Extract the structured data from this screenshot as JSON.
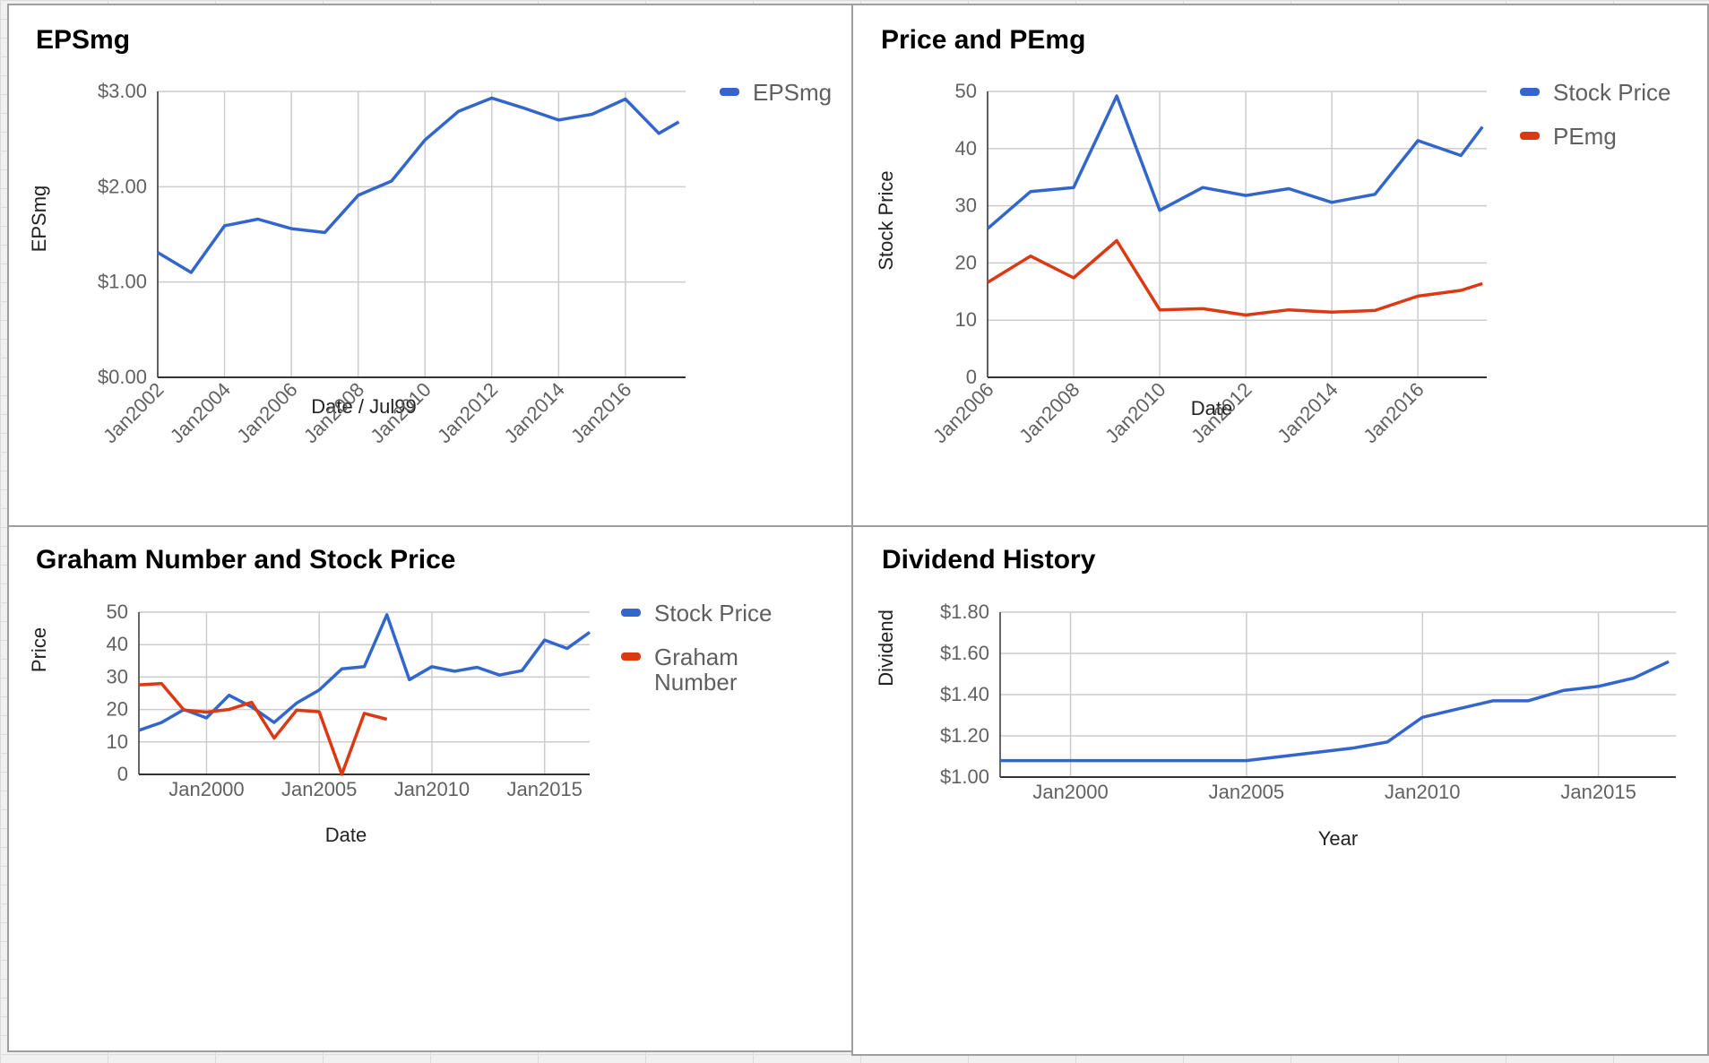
{
  "colors": {
    "blue": "#3366cc",
    "red": "#dc3912",
    "grid": "#cccccc",
    "axis": "#333333"
  },
  "chart_data": [
    {
      "type": "line",
      "title": "EPSmg",
      "xlabel": "Date / Jul99",
      "ylabel": "EPSmg",
      "ylim": [
        0,
        3
      ],
      "y_ticks": [
        0,
        1,
        2,
        3
      ],
      "y_tick_labels": [
        "$0.00",
        "$1.00",
        "$2.00",
        "$3.00"
      ],
      "xlim": [
        2002.0,
        2017.8
      ],
      "x_ticks": [
        2002,
        2004,
        2006,
        2008,
        2010,
        2012,
        2014,
        2016
      ],
      "x_tick_labels": [
        "Jan2002",
        "Jan2004",
        "Jan2006",
        "Jan2008",
        "Jan2010",
        "Jan2012",
        "Jan2014",
        "Jan2016"
      ],
      "x_label_rotation": -45,
      "legend": "right",
      "x": [
        2002,
        2003,
        2004,
        2005,
        2006,
        2007,
        2008,
        2009,
        2010,
        2011,
        2012,
        2013,
        2014,
        2015,
        2016,
        2017,
        2017.6
      ],
      "series": [
        {
          "name": "EPSmg",
          "color": "#3366cc",
          "values": [
            1.31,
            1.1,
            1.59,
            1.66,
            1.56,
            1.52,
            1.91,
            2.06,
            2.49,
            2.79,
            2.93,
            2.82,
            2.7,
            2.76,
            2.92,
            2.56,
            2.68
          ]
        }
      ]
    },
    {
      "type": "line",
      "title": "Price and PEmg",
      "xlabel": "Date",
      "ylabel": "Stock Price",
      "ylim": [
        0,
        50
      ],
      "y_ticks": [
        0,
        10,
        20,
        30,
        40,
        50
      ],
      "y_tick_labels": [
        "0",
        "10",
        "20",
        "30",
        "40",
        "50"
      ],
      "xlim": [
        2006.0,
        2017.6
      ],
      "x_ticks": [
        2006,
        2008,
        2010,
        2012,
        2014,
        2016
      ],
      "x_tick_labels": [
        "Jan2006",
        "Jan2008",
        "Jan2010",
        "Jan2012",
        "Jan2014",
        "Jan2016"
      ],
      "x_label_rotation": -45,
      "legend": "right",
      "x": [
        2006,
        2007,
        2008,
        2009,
        2010,
        2011,
        2012,
        2013,
        2014,
        2015,
        2016,
        2017,
        2017.5
      ],
      "series": [
        {
          "name": "Stock Price",
          "color": "#3366cc",
          "values": [
            26,
            32.5,
            33.2,
            49.2,
            29.2,
            33.2,
            31.8,
            33,
            30.6,
            32,
            41.4,
            38.8,
            43.8
          ]
        },
        {
          "name": "PEmg",
          "color": "#dc3912",
          "values": [
            16.6,
            21.2,
            17.4,
            23.9,
            11.8,
            12,
            10.9,
            11.8,
            11.4,
            11.7,
            14.2,
            15.2,
            16.4
          ]
        }
      ]
    },
    {
      "type": "line",
      "title": "Graham Number and Stock Price",
      "xlabel": "Date",
      "ylabel": "Price",
      "ylim": [
        0,
        50
      ],
      "y_ticks": [
        0,
        10,
        20,
        30,
        40,
        50
      ],
      "y_tick_labels": [
        "0",
        "10",
        "20",
        "30",
        "40",
        "50"
      ],
      "xlim": [
        1997.0,
        2017.0
      ],
      "x_ticks": [
        2000,
        2005,
        2010,
        2015
      ],
      "x_tick_labels": [
        "Jan2000",
        "Jan2005",
        "Jan2010",
        "Jan2015"
      ],
      "x_label_rotation": 0,
      "legend": "right",
      "series": [
        {
          "name": "Stock Price",
          "legend_lines": [
            "Stock Price"
          ],
          "color": "#3366cc",
          "x": [
            1997,
            1998,
            1999,
            2000,
            2001,
            2002,
            2003,
            2004,
            2005,
            2006,
            2007,
            2008,
            2009,
            2010,
            2011,
            2012,
            2013,
            2014,
            2015,
            2016,
            2017
          ],
          "values": [
            13.6,
            16,
            20,
            17.4,
            24.4,
            20.8,
            16,
            22,
            26,
            32.5,
            33.2,
            49.2,
            29.2,
            33.2,
            31.8,
            33,
            30.6,
            32,
            41.4,
            38.8,
            43.8
          ]
        },
        {
          "name": "Graham Number",
          "legend_lines": [
            "Graham",
            "Number"
          ],
          "color": "#dc3912",
          "x": [
            1997,
            1998,
            1999,
            2000,
            2001,
            2002,
            2003,
            2004,
            2005,
            2006,
            2007,
            2008
          ],
          "values": [
            27.6,
            28,
            19.8,
            19.2,
            20,
            22.2,
            11.2,
            19.8,
            19.3,
            0,
            18.8,
            17
          ]
        }
      ]
    },
    {
      "type": "line",
      "title": "Dividend History",
      "xlabel": "Year",
      "ylabel": "Dividend",
      "ylim": [
        1.0,
        1.8
      ],
      "y_ticks": [
        1.0,
        1.2,
        1.4,
        1.6,
        1.8
      ],
      "y_tick_labels": [
        "$1.00",
        "$1.20",
        "$1.40",
        "$1.60",
        "$1.80"
      ],
      "xlim": [
        1998.0,
        2017.2
      ],
      "x_ticks": [
        2000,
        2005,
        2010,
        2015
      ],
      "x_tick_labels": [
        "Jan2000",
        "Jan2005",
        "Jan2010",
        "Jan2015"
      ],
      "x_label_rotation": 0,
      "legend": "none",
      "x": [
        1998,
        1999,
        2000,
        2001,
        2002,
        2003,
        2004,
        2005,
        2006,
        2007,
        2008,
        2009,
        2010,
        2011,
        2012,
        2013,
        2014,
        2015,
        2016,
        2017
      ],
      "series": [
        {
          "name": "Dividend",
          "color": "#3366cc",
          "values": [
            1.08,
            1.08,
            1.08,
            1.08,
            1.08,
            1.08,
            1.08,
            1.08,
            1.1,
            1.12,
            1.14,
            1.17,
            1.29,
            1.33,
            1.37,
            1.37,
            1.42,
            1.44,
            1.48,
            1.56
          ]
        }
      ]
    }
  ]
}
